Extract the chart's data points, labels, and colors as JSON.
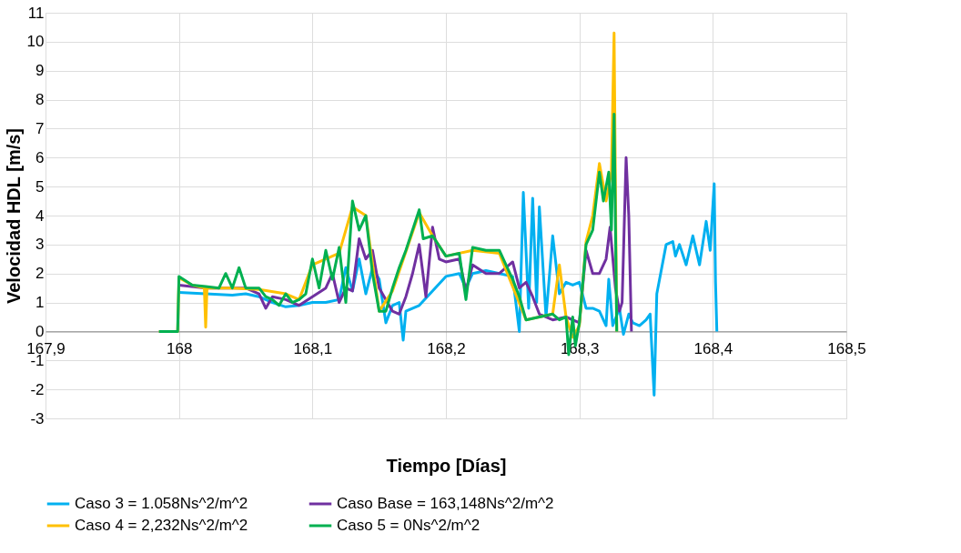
{
  "chart_data": {
    "type": "line",
    "xlabel": "Tiempo [Días]",
    "ylabel": "Velocidad HDL [m/s]",
    "xlim": [
      167.9,
      168.5
    ],
    "xticks": [
      {
        "value": 167.9,
        "label": "167,9"
      },
      {
        "value": 168,
        "label": "168"
      },
      {
        "value": 168.1,
        "label": "168,1"
      },
      {
        "value": 168.2,
        "label": "168,2"
      },
      {
        "value": 168.3,
        "label": "168,3"
      },
      {
        "value": 168.4,
        "label": "168,4"
      },
      {
        "value": 168.5,
        "label": "168,5"
      }
    ],
    "ylim": [
      -3,
      11
    ],
    "yticks": [
      -3,
      -2,
      -1,
      0,
      1,
      2,
      3,
      4,
      5,
      6,
      7,
      8,
      9,
      10,
      11
    ],
    "grid": true,
    "legend": "bottom",
    "marker": "none",
    "line_style": "solid",
    "series": [
      {
        "name": "Caso 3 = 1.058Ns^2/m^2",
        "color": "#00b0f0",
        "x": [
          168.0,
          168.02,
          168.04,
          168.05,
          168.06,
          168.07,
          168.08,
          168.09,
          168.1,
          168.11,
          168.12,
          168.125,
          168.13,
          168.135,
          168.14,
          168.145,
          168.15,
          168.155,
          168.16,
          168.165,
          168.168,
          168.17,
          168.18,
          168.2,
          168.21,
          168.215,
          168.22,
          168.23,
          168.24,
          168.25,
          168.255,
          168.258,
          168.262,
          168.265,
          168.268,
          168.27,
          168.275,
          168.28,
          168.285,
          168.29,
          168.295,
          168.3,
          168.305,
          168.31,
          168.315,
          168.32,
          168.322,
          168.325,
          168.33,
          168.333,
          168.337,
          168.34,
          168.345,
          168.35,
          168.353,
          168.356,
          168.358,
          168.365,
          168.37,
          168.372,
          168.375,
          168.38,
          168.385,
          168.39,
          168.395,
          168.398,
          168.401,
          168.402,
          168.403
        ],
        "values": [
          1.35,
          1.3,
          1.25,
          1.3,
          1.2,
          1.0,
          0.85,
          0.9,
          1.0,
          1.0,
          1.1,
          2.2,
          1.4,
          2.5,
          1.3,
          2.2,
          1.8,
          0.3,
          0.9,
          1.0,
          -0.3,
          0.7,
          0.9,
          1.9,
          2.0,
          1.5,
          2.0,
          2.1,
          2.0,
          1.9,
          0,
          4.8,
          0.8,
          4.6,
          1.0,
          4.3,
          0.5,
          3.3,
          1.3,
          1.7,
          1.6,
          1.7,
          0.8,
          0.8,
          0.7,
          0.2,
          1.8,
          0.2,
          0.8,
          -0.1,
          0.6,
          0.3,
          0.2,
          0.4,
          0.6,
          -2.2,
          1.3,
          3.0,
          3.1,
          2.6,
          3.0,
          2.3,
          3.3,
          2.3,
          3.8,
          2.8,
          5.1,
          1.7,
          0
        ]
      },
      {
        "name": "Caso Base = 163,148Ns^2/m^2",
        "color": "#7030a0",
        "x": [
          168.0,
          168.02,
          168.04,
          168.05,
          168.06,
          168.065,
          168.07,
          168.08,
          168.09,
          168.1,
          168.11,
          168.115,
          168.12,
          168.125,
          168.13,
          168.135,
          168.14,
          168.145,
          168.15,
          168.16,
          168.165,
          168.17,
          168.175,
          168.18,
          168.185,
          168.19,
          168.195,
          168.2,
          168.21,
          168.215,
          168.22,
          168.23,
          168.24,
          168.25,
          168.255,
          168.26,
          168.265,
          168.27,
          168.28,
          168.29,
          168.3,
          168.305,
          168.31,
          168.315,
          168.32,
          168.323,
          168.327,
          168.33,
          168.332,
          168.335,
          168.337,
          168.339
        ],
        "values": [
          1.6,
          1.5,
          1.5,
          1.5,
          1.3,
          0.8,
          1.2,
          1.1,
          0.9,
          1.2,
          1.5,
          2.0,
          1.0,
          1.5,
          1.4,
          3.2,
          2.5,
          2.8,
          1.5,
          0.7,
          0.6,
          1.2,
          2.0,
          3.0,
          1.2,
          3.6,
          2.5,
          2.4,
          2.5,
          1.4,
          2.3,
          2.0,
          2.0,
          2.4,
          1.5,
          1.7,
          1.2,
          0.6,
          0.4,
          0.5,
          0.3,
          2.8,
          2.0,
          2.0,
          2.5,
          3.6,
          1.5,
          0.7,
          1.0,
          6.0,
          4.0,
          0
        ]
      },
      {
        "name": "Caso 4 = 2,232Ns^2/m^2",
        "color": "#ffc000",
        "x": [
          167.985,
          167.999,
          168.0,
          168.01,
          168.019,
          168.02,
          168.021,
          168.04,
          168.06,
          168.08,
          168.09,
          168.1,
          168.12,
          168.13,
          168.14,
          168.15,
          168.16,
          168.18,
          168.19,
          168.2,
          168.22,
          168.24,
          168.26,
          168.28,
          168.285,
          168.29,
          168.295,
          168.3,
          168.305,
          168.31,
          168.315,
          168.32,
          168.324,
          168.326,
          168.328
        ],
        "values": [
          0,
          0,
          1.85,
          1.6,
          1.5,
          0.15,
          1.5,
          1.5,
          1.45,
          1.3,
          1.1,
          2.3,
          2.7,
          4.3,
          4.0,
          0.7,
          1.4,
          4.1,
          3.3,
          2.6,
          2.8,
          2.7,
          0.4,
          0.6,
          2.3,
          0.5,
          -0.2,
          0.2,
          3.1,
          4.0,
          5.8,
          4.5,
          5.5,
          10.3,
          0
        ]
      },
      {
        "name": "Caso 5 = 0Ns^2/m^2",
        "color": "#00b050",
        "x": [
          167.985,
          167.999,
          168.0,
          168.01,
          168.02,
          168.03,
          168.035,
          168.04,
          168.045,
          168.05,
          168.06,
          168.065,
          168.07,
          168.075,
          168.08,
          168.085,
          168.09,
          168.095,
          168.1,
          168.105,
          168.11,
          168.115,
          168.12,
          168.125,
          168.13,
          168.135,
          168.14,
          168.145,
          168.15,
          168.155,
          168.16,
          168.165,
          168.17,
          168.175,
          168.18,
          168.183,
          168.19,
          168.2,
          168.21,
          168.215,
          168.22,
          168.23,
          168.24,
          168.25,
          168.255,
          168.26,
          168.27,
          168.28,
          168.285,
          168.29,
          168.292,
          168.295,
          168.297,
          168.3,
          168.305,
          168.31,
          168.315,
          168.318,
          168.322,
          168.324,
          168.326,
          168.328
        ],
        "values": [
          0,
          0,
          1.9,
          1.6,
          1.55,
          1.5,
          2.0,
          1.5,
          2.2,
          1.5,
          1.5,
          1.2,
          1.1,
          0.9,
          1.3,
          1.0,
          1.1,
          1.3,
          2.5,
          1.5,
          2.8,
          1.8,
          2.9,
          1.0,
          4.5,
          3.5,
          4.0,
          2.0,
          0.7,
          0.7,
          1.5,
          2.2,
          2.8,
          3.5,
          4.2,
          3.2,
          3.3,
          2.6,
          2.7,
          1.1,
          2.9,
          2.8,
          2.8,
          1.8,
          1.2,
          0.4,
          0.5,
          0.6,
          0.4,
          0.5,
          -0.8,
          0.5,
          -0.5,
          0.3,
          3.0,
          3.5,
          5.5,
          4.5,
          5.5,
          3.5,
          7.5,
          0
        ]
      }
    ]
  }
}
